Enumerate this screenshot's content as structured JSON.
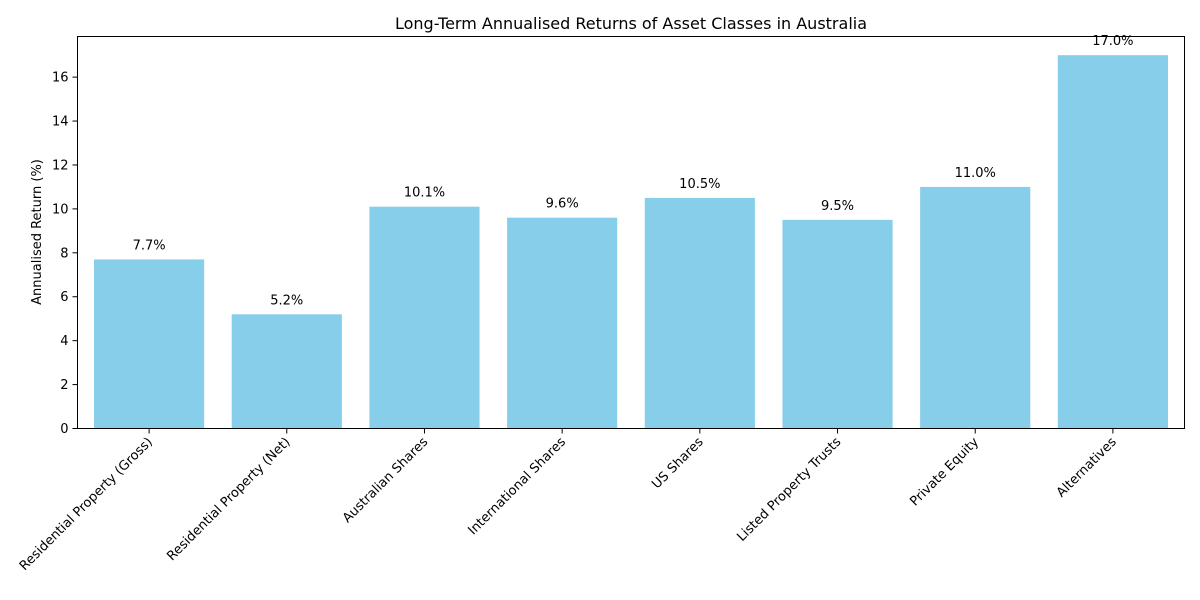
{
  "chart_data": {
    "type": "bar",
    "title": "Long-Term Annualised Returns of Asset Classes in Australia",
    "xlabel": "",
    "ylabel": "Annualised Return (%)",
    "categories": [
      "Residential Property (Gross)",
      "Residential Property (Net)",
      "Australian Shares",
      "International Shares",
      "US Shares",
      "Listed Property Trusts",
      "Private Equity",
      "Alternatives"
    ],
    "values": [
      7.7,
      5.2,
      10.1,
      9.6,
      10.5,
      9.5,
      11.0,
      17.0
    ],
    "data_labels": [
      "7.7%",
      "5.2%",
      "10.1%",
      "9.6%",
      "10.5%",
      "9.5%",
      "11.0%",
      "17.0%"
    ],
    "ylim": [
      0,
      17.85
    ],
    "yticks": [
      0,
      2,
      4,
      6,
      8,
      10,
      12,
      14,
      16
    ],
    "grid": false,
    "legend": "none",
    "bar_color": "#87CEEB"
  }
}
